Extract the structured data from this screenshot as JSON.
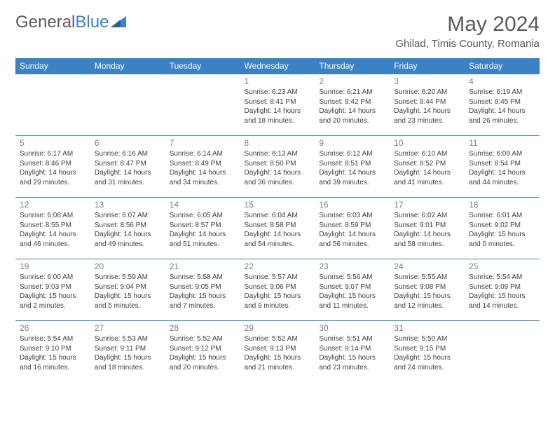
{
  "brand": {
    "part1": "General",
    "part2": "Blue"
  },
  "title": "May 2024",
  "location": "Ghilad, Timis County, Romania",
  "colors": {
    "header_bg": "#3b82c4",
    "header_text": "#ffffff",
    "text_gray": "#5a5a5a",
    "day_num": "#808080",
    "cell_text": "#404040",
    "border": "#3b82c4"
  },
  "weekdays": [
    "Sunday",
    "Monday",
    "Tuesday",
    "Wednesday",
    "Thursday",
    "Friday",
    "Saturday"
  ],
  "weeks": [
    [
      null,
      null,
      null,
      {
        "n": "1",
        "sr": "Sunrise: 6:23 AM",
        "ss": "Sunset: 8:41 PM",
        "d1": "Daylight: 14 hours",
        "d2": "and 18 minutes."
      },
      {
        "n": "2",
        "sr": "Sunrise: 6:21 AM",
        "ss": "Sunset: 8:42 PM",
        "d1": "Daylight: 14 hours",
        "d2": "and 20 minutes."
      },
      {
        "n": "3",
        "sr": "Sunrise: 6:20 AM",
        "ss": "Sunset: 8:44 PM",
        "d1": "Daylight: 14 hours",
        "d2": "and 23 minutes."
      },
      {
        "n": "4",
        "sr": "Sunrise: 6:19 AM",
        "ss": "Sunset: 8:45 PM",
        "d1": "Daylight: 14 hours",
        "d2": "and 26 minutes."
      }
    ],
    [
      {
        "n": "5",
        "sr": "Sunrise: 6:17 AM",
        "ss": "Sunset: 8:46 PM",
        "d1": "Daylight: 14 hours",
        "d2": "and 29 minutes."
      },
      {
        "n": "6",
        "sr": "Sunrise: 6:16 AM",
        "ss": "Sunset: 8:47 PM",
        "d1": "Daylight: 14 hours",
        "d2": "and 31 minutes."
      },
      {
        "n": "7",
        "sr": "Sunrise: 6:14 AM",
        "ss": "Sunset: 8:49 PM",
        "d1": "Daylight: 14 hours",
        "d2": "and 34 minutes."
      },
      {
        "n": "8",
        "sr": "Sunrise: 6:13 AM",
        "ss": "Sunset: 8:50 PM",
        "d1": "Daylight: 14 hours",
        "d2": "and 36 minutes."
      },
      {
        "n": "9",
        "sr": "Sunrise: 6:12 AM",
        "ss": "Sunset: 8:51 PM",
        "d1": "Daylight: 14 hours",
        "d2": "and 39 minutes."
      },
      {
        "n": "10",
        "sr": "Sunrise: 6:10 AM",
        "ss": "Sunset: 8:52 PM",
        "d1": "Daylight: 14 hours",
        "d2": "and 41 minutes."
      },
      {
        "n": "11",
        "sr": "Sunrise: 6:09 AM",
        "ss": "Sunset: 8:54 PM",
        "d1": "Daylight: 14 hours",
        "d2": "and 44 minutes."
      }
    ],
    [
      {
        "n": "12",
        "sr": "Sunrise: 6:08 AM",
        "ss": "Sunset: 8:55 PM",
        "d1": "Daylight: 14 hours",
        "d2": "and 46 minutes."
      },
      {
        "n": "13",
        "sr": "Sunrise: 6:07 AM",
        "ss": "Sunset: 8:56 PM",
        "d1": "Daylight: 14 hours",
        "d2": "and 49 minutes."
      },
      {
        "n": "14",
        "sr": "Sunrise: 6:05 AM",
        "ss": "Sunset: 8:57 PM",
        "d1": "Daylight: 14 hours",
        "d2": "and 51 minutes."
      },
      {
        "n": "15",
        "sr": "Sunrise: 6:04 AM",
        "ss": "Sunset: 8:58 PM",
        "d1": "Daylight: 14 hours",
        "d2": "and 54 minutes."
      },
      {
        "n": "16",
        "sr": "Sunrise: 6:03 AM",
        "ss": "Sunset: 8:59 PM",
        "d1": "Daylight: 14 hours",
        "d2": "and 56 minutes."
      },
      {
        "n": "17",
        "sr": "Sunrise: 6:02 AM",
        "ss": "Sunset: 9:01 PM",
        "d1": "Daylight: 14 hours",
        "d2": "and 58 minutes."
      },
      {
        "n": "18",
        "sr": "Sunrise: 6:01 AM",
        "ss": "Sunset: 9:02 PM",
        "d1": "Daylight: 15 hours",
        "d2": "and 0 minutes."
      }
    ],
    [
      {
        "n": "19",
        "sr": "Sunrise: 6:00 AM",
        "ss": "Sunset: 9:03 PM",
        "d1": "Daylight: 15 hours",
        "d2": "and 2 minutes."
      },
      {
        "n": "20",
        "sr": "Sunrise: 5:59 AM",
        "ss": "Sunset: 9:04 PM",
        "d1": "Daylight: 15 hours",
        "d2": "and 5 minutes."
      },
      {
        "n": "21",
        "sr": "Sunrise: 5:58 AM",
        "ss": "Sunset: 9:05 PM",
        "d1": "Daylight: 15 hours",
        "d2": "and 7 minutes."
      },
      {
        "n": "22",
        "sr": "Sunrise: 5:57 AM",
        "ss": "Sunset: 9:06 PM",
        "d1": "Daylight: 15 hours",
        "d2": "and 9 minutes."
      },
      {
        "n": "23",
        "sr": "Sunrise: 5:56 AM",
        "ss": "Sunset: 9:07 PM",
        "d1": "Daylight: 15 hours",
        "d2": "and 11 minutes."
      },
      {
        "n": "24",
        "sr": "Sunrise: 5:55 AM",
        "ss": "Sunset: 9:08 PM",
        "d1": "Daylight: 15 hours",
        "d2": "and 12 minutes."
      },
      {
        "n": "25",
        "sr": "Sunrise: 5:54 AM",
        "ss": "Sunset: 9:09 PM",
        "d1": "Daylight: 15 hours",
        "d2": "and 14 minutes."
      }
    ],
    [
      {
        "n": "26",
        "sr": "Sunrise: 5:54 AM",
        "ss": "Sunset: 9:10 PM",
        "d1": "Daylight: 15 hours",
        "d2": "and 16 minutes."
      },
      {
        "n": "27",
        "sr": "Sunrise: 5:53 AM",
        "ss": "Sunset: 9:11 PM",
        "d1": "Daylight: 15 hours",
        "d2": "and 18 minutes."
      },
      {
        "n": "28",
        "sr": "Sunrise: 5:52 AM",
        "ss": "Sunset: 9:12 PM",
        "d1": "Daylight: 15 hours",
        "d2": "and 20 minutes."
      },
      {
        "n": "29",
        "sr": "Sunrise: 5:52 AM",
        "ss": "Sunset: 9:13 PM",
        "d1": "Daylight: 15 hours",
        "d2": "and 21 minutes."
      },
      {
        "n": "30",
        "sr": "Sunrise: 5:51 AM",
        "ss": "Sunset: 9:14 PM",
        "d1": "Daylight: 15 hours",
        "d2": "and 23 minutes."
      },
      {
        "n": "31",
        "sr": "Sunrise: 5:50 AM",
        "ss": "Sunset: 9:15 PM",
        "d1": "Daylight: 15 hours",
        "d2": "and 24 minutes."
      },
      null
    ]
  ]
}
